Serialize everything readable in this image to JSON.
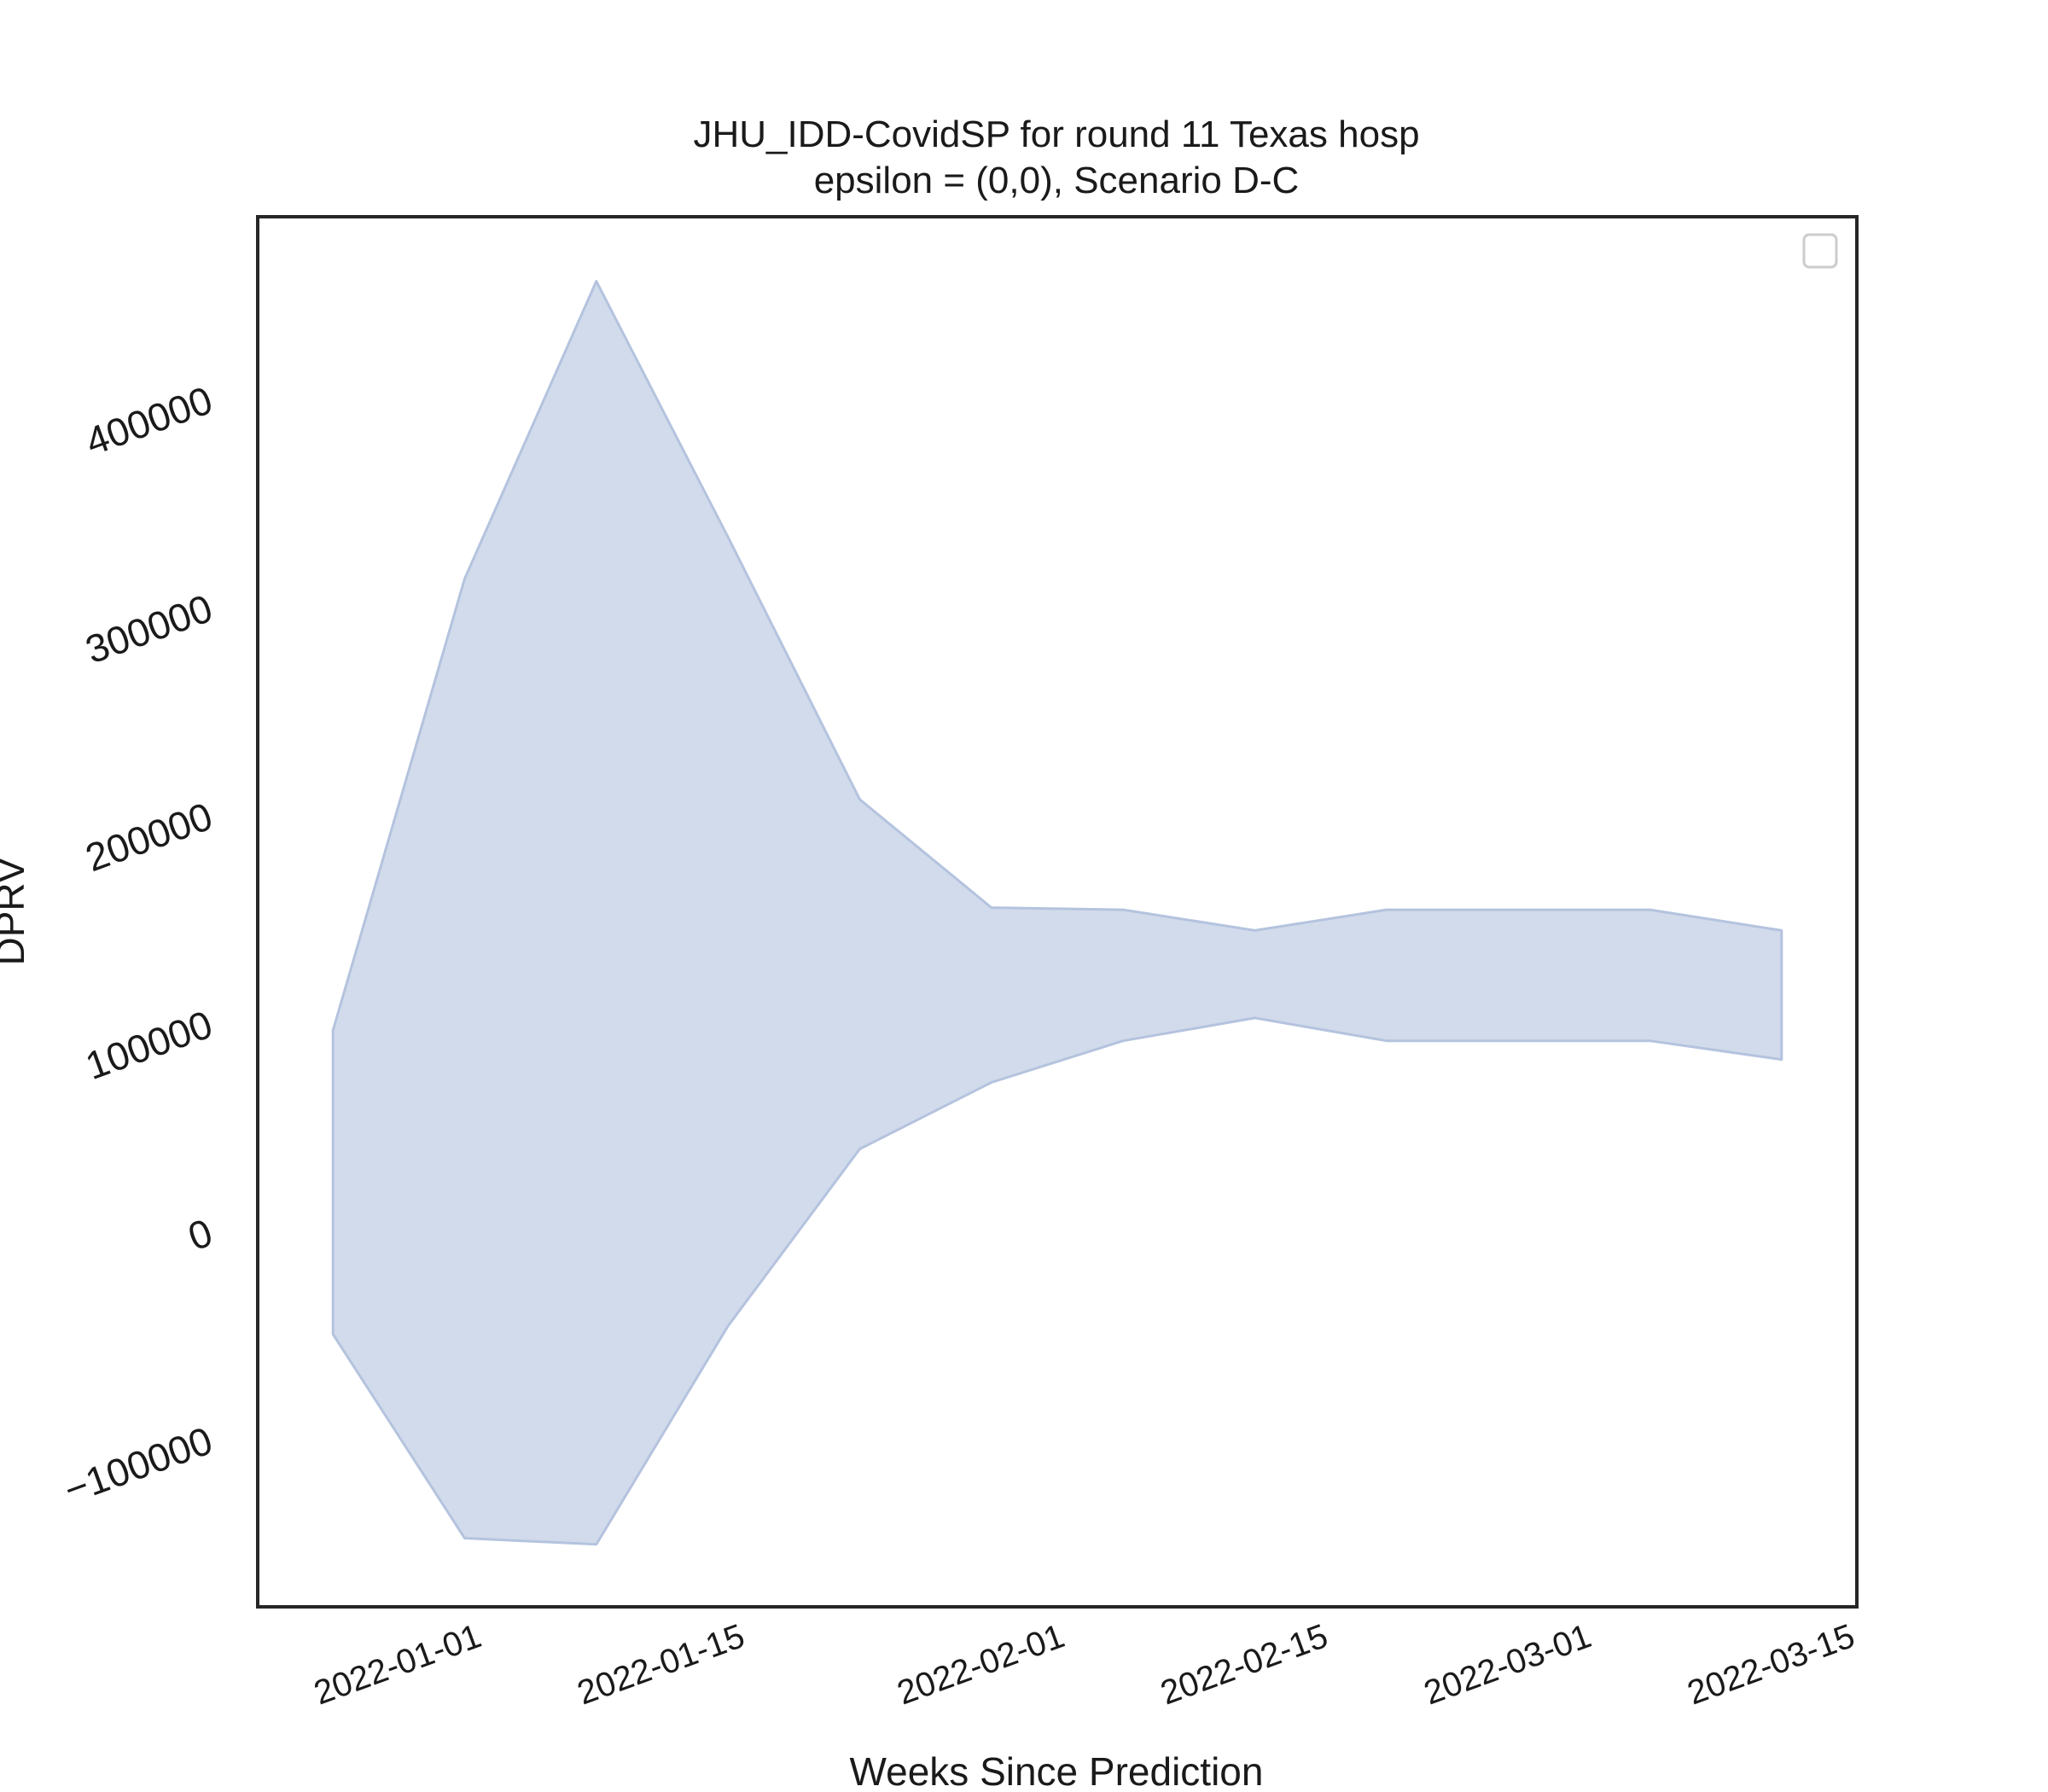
{
  "chart_data": {
    "type": "area",
    "title_line1": "JHU_IDD-CovidSP for round 11 Texas hosp",
    "title_line2": "epsilon = (0,0), Scenario D-C",
    "xlabel": "Weeks Since Prediction",
    "ylabel": "DPRV",
    "x_ticks": [
      "2022-01-01",
      "2022-01-15",
      "2022-02-01",
      "2022-02-15",
      "2022-03-01",
      "2022-03-15"
    ],
    "y_ticks": [
      -100000,
      0,
      100000,
      200000,
      300000,
      400000
    ],
    "y_tick_labels": [
      "−100000",
      "0",
      "100000",
      "200000",
      "300000",
      "400000"
    ],
    "xlim": [
      "2021-12-21",
      "2022-03-16"
    ],
    "ylim": [
      -182000,
      486000
    ],
    "grid": false,
    "legend": {
      "placement": "top-right",
      "entries": []
    },
    "fill_color": "#d2dbeb",
    "edge_color": "#b4c3de",
    "band": {
      "x": [
        "2021-12-25",
        "2022-01-01",
        "2022-01-08",
        "2022-01-15",
        "2022-01-22",
        "2022-01-29",
        "2022-02-05",
        "2022-02-12",
        "2022-02-19",
        "2022-02-26",
        "2022-03-05",
        "2022-03-12"
      ],
      "upper": [
        95000,
        312000,
        455000,
        332000,
        206000,
        154000,
        153000,
        143000,
        153000,
        153000,
        153000,
        143000
      ],
      "lower": [
        -51000,
        -149000,
        -152000,
        -47000,
        38000,
        70000,
        90000,
        101000,
        90000,
        90000,
        90000,
        81000
      ]
    }
  }
}
